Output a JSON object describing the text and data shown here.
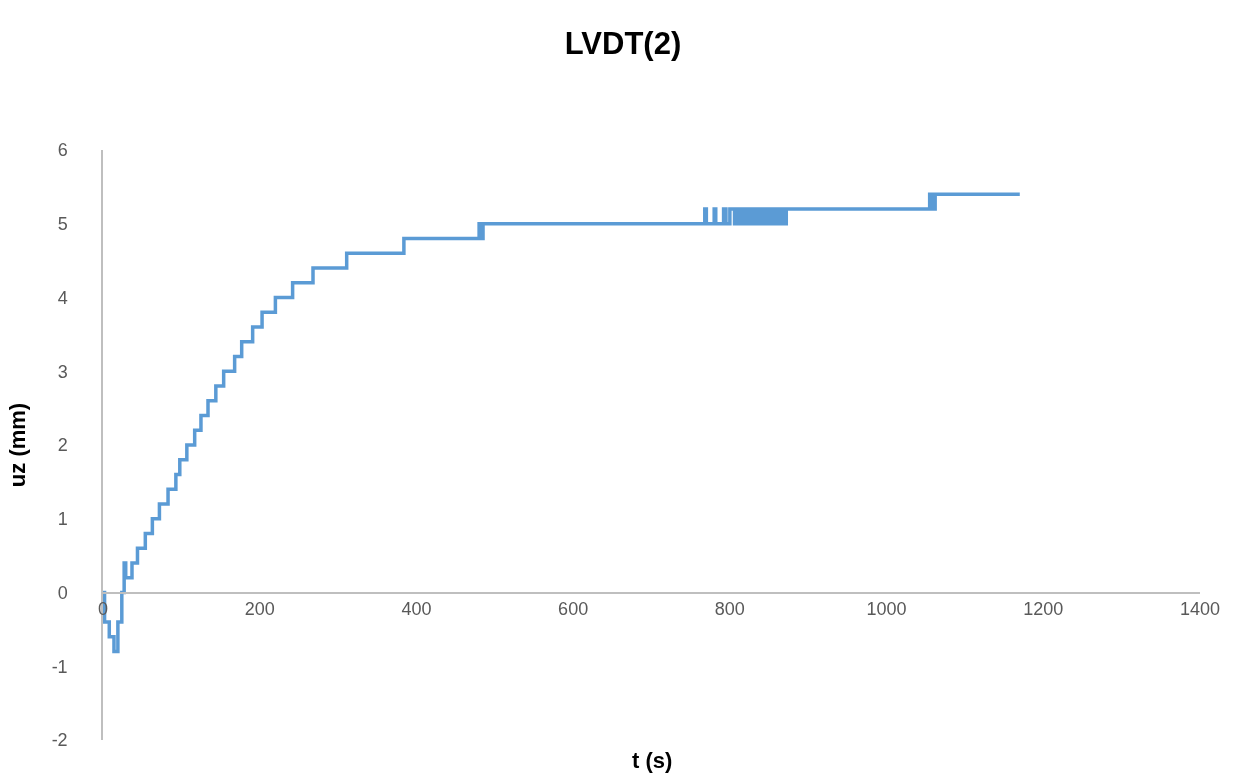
{
  "chart_data": {
    "type": "step",
    "title": "LVDT(2)",
    "xlabel": "t (s)",
    "ylabel": "uz (mm)",
    "xlim": [
      0,
      1400
    ],
    "xticks": [
      0,
      200,
      400,
      600,
      800,
      1000,
      1200,
      1400
    ],
    "ylim": [
      -2,
      6
    ],
    "yticks": [
      -2,
      -1,
      0,
      1,
      2,
      3,
      4,
      5,
      6
    ],
    "grid": false,
    "marker": "none",
    "line_style": "solid",
    "series": [
      {
        "color": "#5b9bd5",
        "x": [
          0,
          2,
          8,
          14,
          19,
          24,
          27,
          29,
          37,
          44,
          54,
          63,
          72,
          83,
          93,
          98,
          107,
          117,
          125,
          134,
          144,
          154,
          168,
          177,
          191,
          203,
          220,
          242,
          268,
          311,
          384,
          480,
          482,
          485,
          768,
          770,
          780,
          782,
          792,
          795,
          800,
          806,
          809,
          812,
          815,
          819,
          822,
          826,
          830,
          834,
          838,
          842,
          845,
          848,
          852,
          856,
          859,
          862,
          866,
          869,
          872,
          1055,
          1058,
          1062,
          1170
        ],
        "values": [
          0,
          -0.4,
          -0.6,
          -0.8,
          -0.4,
          0,
          0.4,
          0.2,
          0.4,
          0.6,
          0.8,
          1.0,
          1.2,
          1.4,
          1.6,
          1.8,
          2.0,
          2.2,
          2.4,
          2.6,
          2.8,
          3.0,
          3.2,
          3.4,
          3.6,
          3.8,
          4.0,
          4.2,
          4.4,
          4.6,
          4.8,
          5.0,
          4.8,
          5.0,
          5.2,
          5.0,
          5.2,
          5.0,
          5.2,
          5.0,
          5.2,
          5.0,
          5.2,
          5.0,
          5.2,
          5.0,
          5.2,
          5.0,
          5.2,
          5.0,
          5.2,
          5.0,
          5.2,
          5.0,
          5.2,
          5.0,
          5.2,
          5.0,
          5.2,
          5.0,
          5.2,
          5.4,
          5.2,
          5.4,
          5.4
        ]
      }
    ]
  }
}
